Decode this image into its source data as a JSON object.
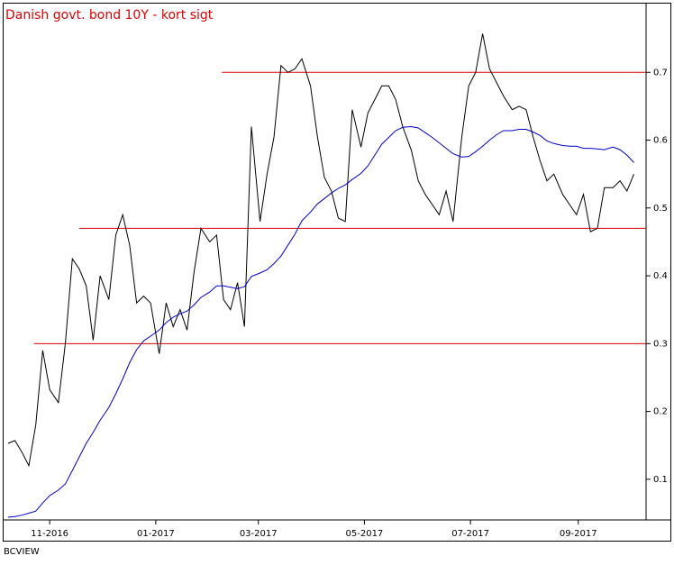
{
  "chart_data": {
    "type": "line",
    "title": "Danish govt. bond 10Y - kort sigt",
    "footer": "BCVIEW",
    "x": [
      -24,
      -20,
      -16,
      -12,
      -8,
      -4,
      0,
      5,
      9,
      13,
      17,
      21,
      25,
      29,
      34,
      38,
      42,
      46,
      50,
      54,
      58,
      63,
      67,
      71,
      75,
      79,
      83,
      87,
      92,
      96,
      100,
      104,
      108,
      112,
      116,
      121,
      125,
      129,
      133,
      137,
      141,
      145,
      150,
      154,
      158,
      162,
      166,
      170,
      174,
      179,
      183,
      187,
      191,
      195,
      199,
      203,
      208,
      212,
      216,
      220,
      224,
      228,
      232,
      237,
      241,
      245,
      249,
      253,
      257,
      261,
      266,
      270,
      274,
      278,
      282,
      286,
      290,
      295,
      299,
      303,
      307,
      311,
      315,
      319,
      324,
      328,
      332,
      336
    ],
    "series": [
      {
        "color": "#000000",
        "values": [
          0.153,
          0.157,
          0.14,
          0.12,
          0.18,
          0.29,
          0.232,
          0.213,
          0.3,
          0.425,
          0.41,
          0.385,
          0.305,
          0.4,
          0.365,
          0.46,
          0.49,
          0.445,
          0.36,
          0.37,
          0.36,
          0.285,
          0.36,
          0.325,
          0.35,
          0.32,
          0.405,
          0.47,
          0.45,
          0.46,
          0.365,
          0.35,
          0.39,
          0.325,
          0.62,
          0.48,
          0.55,
          0.605,
          0.71,
          0.7,
          0.705,
          0.72,
          0.68,
          0.605,
          0.545,
          0.525,
          0.485,
          0.48,
          0.645,
          0.59,
          0.64,
          0.66,
          0.68,
          0.68,
          0.66,
          0.62,
          0.585,
          0.54,
          0.52,
          0.505,
          0.49,
          0.525,
          0.48,
          0.605,
          0.68,
          0.7,
          0.757,
          0.705,
          0.685,
          0.665,
          0.645,
          0.65,
          0.645,
          0.605,
          0.57,
          0.54,
          0.55,
          0.52,
          0.505,
          0.49,
          0.52,
          0.465,
          0.47,
          0.53,
          0.53,
          0.54,
          0.525,
          0.55
        ]
      },
      {
        "color": "#0000cc",
        "values": [
          0.044,
          0.045,
          0.047,
          0.05,
          0.053,
          0.065,
          0.076,
          0.084,
          0.093,
          0.113,
          0.133,
          0.153,
          0.169,
          0.187,
          0.206,
          0.226,
          0.248,
          0.272,
          0.291,
          0.304,
          0.311,
          0.32,
          0.331,
          0.339,
          0.344,
          0.348,
          0.357,
          0.368,
          0.376,
          0.385,
          0.385,
          0.383,
          0.381,
          0.384,
          0.399,
          0.404,
          0.409,
          0.418,
          0.429,
          0.445,
          0.461,
          0.481,
          0.494,
          0.506,
          0.514,
          0.522,
          0.529,
          0.534,
          0.542,
          0.551,
          0.562,
          0.578,
          0.594,
          0.604,
          0.614,
          0.619,
          0.62,
          0.618,
          0.611,
          0.604,
          0.596,
          0.588,
          0.58,
          0.575,
          0.576,
          0.583,
          0.591,
          0.6,
          0.608,
          0.614,
          0.614,
          0.616,
          0.616,
          0.612,
          0.607,
          0.599,
          0.595,
          0.592,
          0.591,
          0.591,
          0.588,
          0.588,
          0.587,
          0.586,
          0.59,
          0.586,
          0.578,
          0.567
        ]
      }
    ],
    "hlines": [
      {
        "y": 0.7,
        "x": [
          99,
          343
        ],
        "color": "#dd0000"
      },
      {
        "y": 0.47,
        "x": [
          17,
          343
        ],
        "color": "#dd0000"
      },
      {
        "y": 0.3,
        "x": [
          -9,
          343
        ],
        "color": "#dd0000"
      }
    ],
    "xlim": [
      -26,
      343
    ],
    "xticks": [
      {
        "value": 0,
        "label": "11-2016"
      },
      {
        "value": 61,
        "label": "01-2017"
      },
      {
        "value": 120,
        "label": "03-2017"
      },
      {
        "value": 181,
        "label": "05-2017"
      },
      {
        "value": 242,
        "label": "07-2017"
      },
      {
        "value": 304,
        "label": "09-2017"
      }
    ],
    "ylim": [
      0.04,
      0.8
    ],
    "yticks": [
      0.1,
      0.2,
      0.3,
      0.4,
      0.5,
      0.6,
      0.7
    ]
  }
}
